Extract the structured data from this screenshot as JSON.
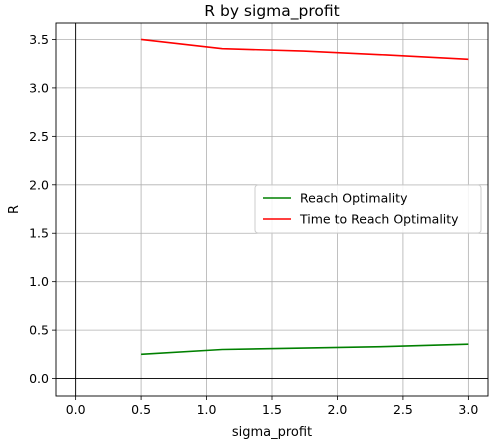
{
  "chart_data": {
    "type": "line",
    "title": "R by sigma_profit",
    "xlabel": "sigma_profit",
    "ylabel": "R",
    "xlim": [
      -0.15,
      3.15
    ],
    "ylim": [
      -0.18,
      3.67
    ],
    "xticks": [
      0.0,
      0.5,
      1.0,
      1.5,
      2.0,
      2.5,
      3.0
    ],
    "xtick_labels": [
      "0.0",
      "0.5",
      "1.0",
      "1.5",
      "2.0",
      "2.5",
      "3.0"
    ],
    "yticks": [
      0.0,
      0.5,
      1.0,
      1.5,
      2.0,
      2.5,
      3.0,
      3.5
    ],
    "ytick_labels": [
      "0.0",
      "0.5",
      "1.0",
      "1.5",
      "2.0",
      "2.5",
      "3.0",
      "3.5"
    ],
    "grid": true,
    "zero_lines": true,
    "legend_position": "center-right",
    "series": [
      {
        "name": "Reach Optimality",
        "color": "#008000",
        "x": [
          0.5,
          1.12,
          1.74,
          2.37,
          3.0
        ],
        "y": [
          0.25,
          0.3,
          0.315,
          0.33,
          0.355
        ]
      },
      {
        "name": "Time to Reach Optimality",
        "color": "#ff0000",
        "x": [
          0.5,
          1.12,
          1.74,
          2.37,
          3.0
        ],
        "y": [
          3.5,
          3.405,
          3.38,
          3.34,
          3.295
        ]
      }
    ]
  }
}
